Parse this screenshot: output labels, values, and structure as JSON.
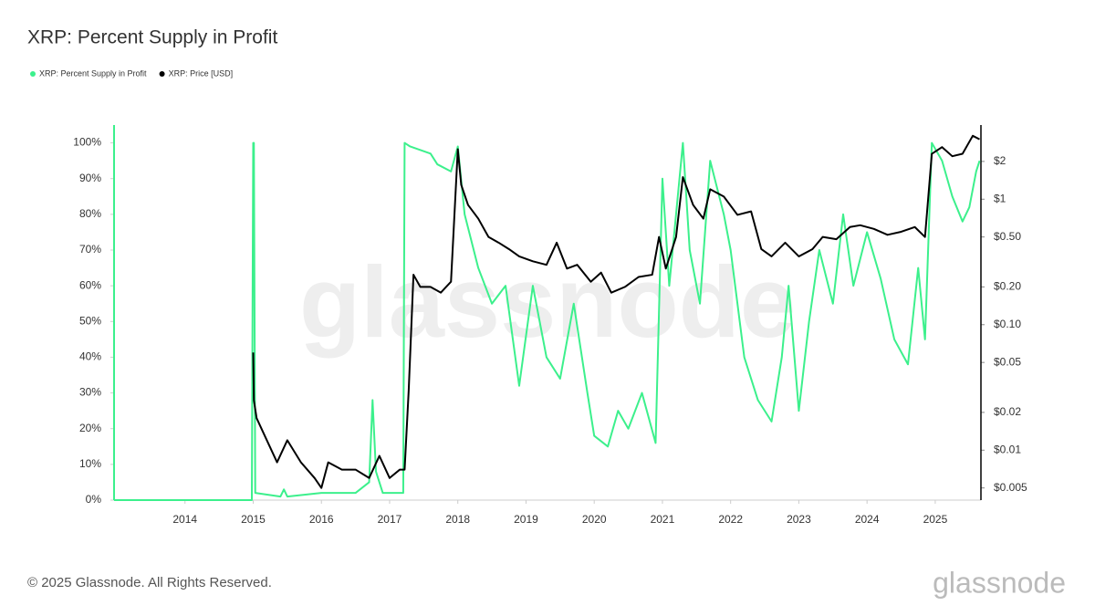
{
  "chart_data": {
    "type": "line",
    "title": "XRP: Percent Supply in Profit",
    "watermark": "glassnode",
    "footer": "© 2025 Glassnode. All Rights Reserved.",
    "logo": "glassnode",
    "xlim": [
      2012.96,
      2025.67
    ],
    "xticks": [
      2014,
      2015,
      2016,
      2017,
      2018,
      2019,
      2020,
      2021,
      2022,
      2023,
      2024,
      2025
    ],
    "ylim": [
      0,
      105
    ],
    "yticks": [
      {
        "value": 0,
        "label": "0%"
      },
      {
        "value": 10,
        "label": "10%"
      },
      {
        "value": 20,
        "label": "20%"
      },
      {
        "value": 30,
        "label": "30%"
      },
      {
        "value": 40,
        "label": "40%"
      },
      {
        "value": 50,
        "label": "50%"
      },
      {
        "value": 60,
        "label": "60%"
      },
      {
        "value": 70,
        "label": "70%"
      },
      {
        "value": 80,
        "label": "80%"
      },
      {
        "value": 90,
        "label": "90%"
      },
      {
        "value": 100,
        "label": "100%"
      }
    ],
    "y2lim": [
      0.004,
      3.9
    ],
    "y2log": true,
    "y2ticks": [
      {
        "value": 0.005,
        "label": "$0.005"
      },
      {
        "value": 0.01,
        "label": "$0.01"
      },
      {
        "value": 0.02,
        "label": "$0.02"
      },
      {
        "value": 0.05,
        "label": "$0.05"
      },
      {
        "value": 0.1,
        "label": "$0.10"
      },
      {
        "value": 0.2,
        "label": "$0.20"
      },
      {
        "value": 0.5,
        "label": "$0.50"
      },
      {
        "value": 1,
        "label": "$1"
      },
      {
        "value": 2,
        "label": "$2"
      }
    ],
    "series": [
      {
        "name": "XRP: Percent Supply in Profit",
        "color": "#3cf08c",
        "x": [
          2012.96,
          2014.98,
          2015.0,
          2015.01,
          2015.03,
          2015.4,
          2015.45,
          2015.5,
          2016.0,
          2016.5,
          2016.7,
          2016.75,
          2016.8,
          2016.9,
          2017.2,
          2017.22,
          2017.3,
          2017.6,
          2017.7,
          2017.9,
          2018.0,
          2018.1,
          2018.3,
          2018.5,
          2018.7,
          2018.9,
          2019.1,
          2019.3,
          2019.5,
          2019.7,
          2019.9,
          2020.0,
          2020.2,
          2020.35,
          2020.5,
          2020.7,
          2020.9,
          2021.0,
          2021.1,
          2021.3,
          2021.4,
          2021.55,
          2021.7,
          2021.9,
          2022.0,
          2022.2,
          2022.4,
          2022.6,
          2022.75,
          2022.85,
          2023.0,
          2023.15,
          2023.3,
          2023.5,
          2023.65,
          2023.8,
          2024.0,
          2024.2,
          2024.4,
          2024.6,
          2024.75,
          2024.85,
          2024.95,
          2025.1,
          2025.25,
          2025.4,
          2025.5,
          2025.6,
          2025.65
        ],
        "values": [
          0,
          0,
          100,
          100,
          2,
          1,
          3,
          1,
          2,
          2,
          5,
          28,
          8,
          2,
          2,
          100,
          99,
          97,
          94,
          92,
          99,
          80,
          65,
          55,
          60,
          32,
          60,
          40,
          34,
          55,
          30,
          18,
          15,
          25,
          20,
          30,
          16,
          90,
          60,
          100,
          70,
          55,
          95,
          80,
          70,
          40,
          28,
          22,
          40,
          60,
          25,
          50,
          70,
          55,
          80,
          60,
          75,
          62,
          45,
          38,
          65,
          45,
          100,
          95,
          85,
          78,
          82,
          92,
          95
        ]
      },
      {
        "name": "XRP: Price [USD]",
        "color": "#000000",
        "x": [
          2015.0,
          2015.01,
          2015.05,
          2015.2,
          2015.35,
          2015.5,
          2015.7,
          2015.9,
          2016.0,
          2016.1,
          2016.3,
          2016.5,
          2016.7,
          2016.85,
          2017.0,
          2017.15,
          2017.22,
          2017.28,
          2017.35,
          2017.45,
          2017.6,
          2017.75,
          2017.9,
          2018.0,
          2018.05,
          2018.15,
          2018.3,
          2018.45,
          2018.6,
          2018.75,
          2018.9,
          2019.1,
          2019.3,
          2019.45,
          2019.6,
          2019.75,
          2019.95,
          2020.1,
          2020.25,
          2020.45,
          2020.65,
          2020.85,
          2020.95,
          2021.05,
          2021.2,
          2021.3,
          2021.45,
          2021.6,
          2021.7,
          2021.9,
          2022.1,
          2022.3,
          2022.45,
          2022.6,
          2022.8,
          2023.0,
          2023.2,
          2023.35,
          2023.55,
          2023.75,
          2023.9,
          2024.1,
          2024.3,
          2024.5,
          2024.7,
          2024.85,
          2024.95,
          2025.1,
          2025.25,
          2025.4,
          2025.55,
          2025.65
        ],
        "values": [
          0.06,
          0.025,
          0.018,
          0.012,
          0.008,
          0.012,
          0.008,
          0.006,
          0.005,
          0.008,
          0.007,
          0.007,
          0.006,
          0.009,
          0.006,
          0.007,
          0.007,
          0.03,
          0.25,
          0.2,
          0.2,
          0.18,
          0.22,
          2.5,
          1.3,
          0.9,
          0.7,
          0.5,
          0.45,
          0.4,
          0.35,
          0.32,
          0.3,
          0.45,
          0.28,
          0.3,
          0.22,
          0.26,
          0.18,
          0.2,
          0.24,
          0.25,
          0.5,
          0.28,
          0.5,
          1.5,
          0.9,
          0.7,
          1.2,
          1.05,
          0.75,
          0.8,
          0.4,
          0.35,
          0.45,
          0.35,
          0.4,
          0.5,
          0.48,
          0.6,
          0.62,
          0.58,
          0.52,
          0.55,
          0.6,
          0.5,
          2.3,
          2.6,
          2.2,
          2.3,
          3.2,
          3.0
        ],
        "axis": "y2"
      }
    ]
  }
}
